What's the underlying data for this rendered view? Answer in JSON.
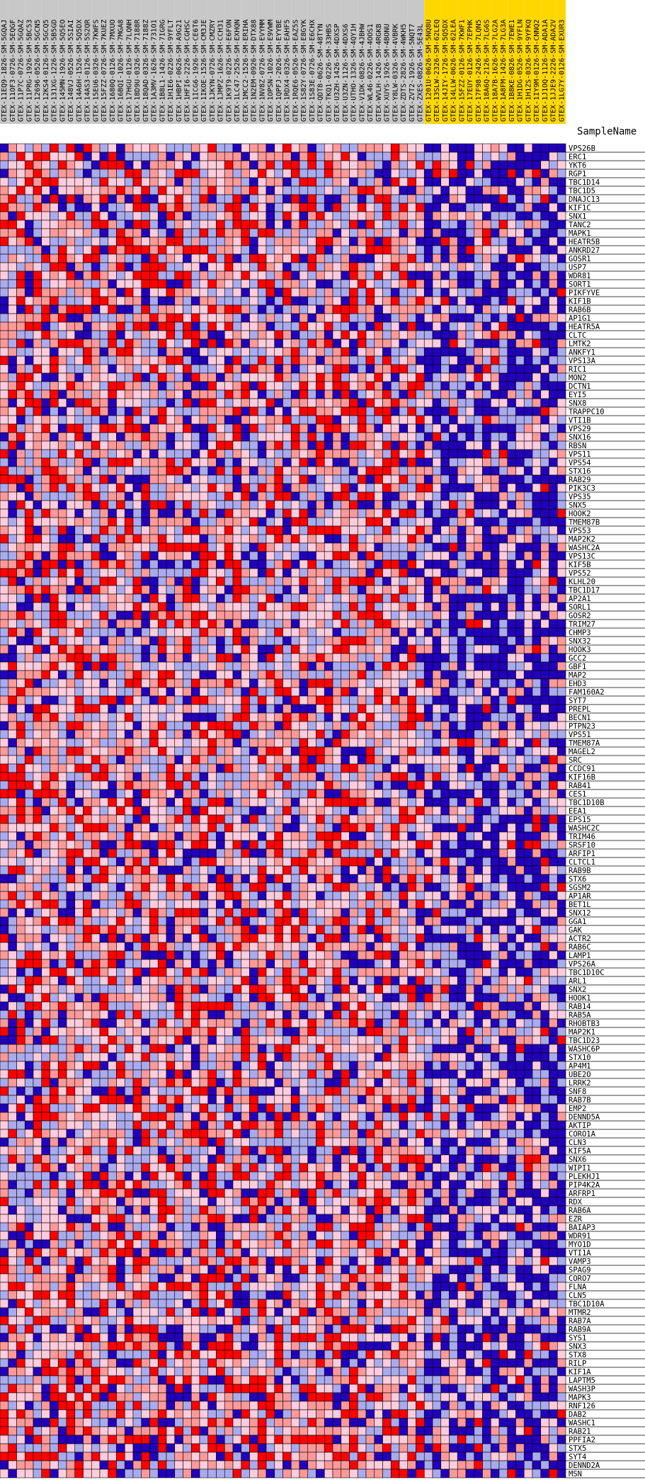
{
  "chart_data": {
    "type": "heatmap",
    "row_header_label": "SampleName",
    "colors": {
      "group_a_header": "#c8c8c8",
      "group_b_header": "#ffd700",
      "high": "#ff0000",
      "mid_high": "#ff9999",
      "mid": "#ffccdd",
      "mid_low": "#aaaaee",
      "low": "#2200bb",
      "grid": "#000000"
    },
    "columns": [
      {
        "name": "GTEX-11EQ9-1826-SM-5GQAJ",
        "group": "a"
      },
      {
        "name": "GTEX-11OF3-0726-SM-5EQGF",
        "group": "a"
      },
      {
        "name": "GTEX-11P7C-0726-SM-5GQAZ",
        "group": "a"
      },
      {
        "name": "GTEX-11PRG-1926-SM-5BC53",
        "group": "a"
      },
      {
        "name": "GTEX-12696-0526-SM-5GCN5",
        "group": "a"
      },
      {
        "name": "GTEX-12KS4-0126-SM-5GCQ5",
        "group": "a"
      },
      {
        "name": "GTEX-131XG-1226-SM-5B5GD",
        "group": "a"
      },
      {
        "name": "GTEX-145MN-1926-SM-5Q5EO",
        "group": "a"
      },
      {
        "name": "GTEX-148VJ-0526-SM-5SIAI",
        "group": "a"
      },
      {
        "name": "GTEX-14A6H-1526-SM-5Q5DX",
        "group": "a"
      },
      {
        "name": "GTEX-14AS3-0126-SM-5S2QR",
        "group": "a"
      },
      {
        "name": "GTEX-15EU6-0326-SM-7KWFS",
        "group": "a"
      },
      {
        "name": "GTEX-15FZZ-0726-SM-7KUEZ",
        "group": "a"
      },
      {
        "name": "GTEX-1680Q-0126-SM-7MXUO",
        "group": "a"
      },
      {
        "name": "GTEX-16BQI-1026-SM-7MGA8",
        "group": "a"
      },
      {
        "name": "GTEX-17HGU-0126-SM-7LQNH",
        "group": "a"
      },
      {
        "name": "GTEX-18D9U-0326-SM-7188R",
        "group": "a"
      },
      {
        "name": "GTEX-18QAD-0326-SM-7188Z",
        "group": "a"
      },
      {
        "name": "GTEX-1A3MV-1626-SM-731O1",
        "group": "a"
      },
      {
        "name": "GTEX-1B8L1-1426-SM-7IGRG",
        "group": "a"
      },
      {
        "name": "GTEX-1H1E6-0226-SM-9YFLT",
        "group": "a"
      },
      {
        "name": "GTEX-1HBPI-0626-SM-A9G21",
        "group": "a"
      },
      {
        "name": "GTEX-1HFI6-2226-SM-CGHSC",
        "group": "a"
      },
      {
        "name": "GTEX-1ICG6-1926-SM-CE6T6",
        "group": "a"
      },
      {
        "name": "GTEX-1IKOE-1526-SM-CM3JE",
        "group": "a"
      },
      {
        "name": "GTEX-1JKYN-0726-SM-CMZRY",
        "group": "a"
      },
      {
        "name": "GTEX-1JMPZ-1626-SM-CCH31",
        "group": "a"
      },
      {
        "name": "GTEX-1K9T9-0226-SM-E6FON",
        "group": "a"
      },
      {
        "name": "GTEX-1LC47-2526-SM-EXHQN",
        "group": "a"
      },
      {
        "name": "GTEX-1MCC2-1526-SM-ERIHA",
        "group": "a"
      },
      {
        "name": "GTEX-1N2EM-0926-SM-DTX88",
        "group": "a"
      },
      {
        "name": "GTEX-1NV8Z-0726-SM-EVYMM",
        "group": "a"
      },
      {
        "name": "GTEX-1OPSN-1026-SM-E9VWM",
        "group": "a"
      },
      {
        "name": "GTEX-1QPFJ-2026-SM-EYYBE",
        "group": "a"
      },
      {
        "name": "GTEX-1RDX4-0326-SM-EAHF5",
        "group": "a"
      },
      {
        "name": "GTEX-1RQE6-0526-SM-EAZ5S",
        "group": "a"
      },
      {
        "name": "GTEX-1S82Y-0726-SM-E8GYK",
        "group": "a"
      },
      {
        "name": "GTEX-1S83E-0726-SM-E6CHX",
        "group": "a"
      },
      {
        "name": "GTEX-QDT8-0626-SM-48TYN",
        "group": "a"
      },
      {
        "name": "GTEX-TKQ1-0226-SM-33HBS",
        "group": "a"
      },
      {
        "name": "GTEX-U3ZH-1426-SM-4DXSP",
        "group": "a"
      },
      {
        "name": "GTEX-U3ZN-1126-SM-4DXS6",
        "group": "a"
      },
      {
        "name": "GTEX-UTHO-1326-SM-4QY1H",
        "group": "a"
      },
      {
        "name": "GTEX-V1DK-0826-SM-4JBHW",
        "group": "a"
      },
      {
        "name": "GTEX-WL46-0226-SM-4OOS1",
        "group": "a"
      },
      {
        "name": "GTEX-WVLH-1426-SM-4RGKB",
        "group": "a"
      },
      {
        "name": "GTEX-XUYS-1926-SM-4BONU",
        "group": "a"
      },
      {
        "name": "GTEX-Y8LW-0326-SM-4VBRK",
        "group": "a"
      },
      {
        "name": "GTEX-ZDTS-2826-SM-4WKH5",
        "group": "a"
      },
      {
        "name": "GTEX-ZVT2-1926-SM-5NQT7",
        "group": "a"
      },
      {
        "name": "GTEX-ZXES-0826-SM-5E43L",
        "group": "a"
      },
      {
        "name": "GTEX-1201U-0626-SM-5NQ8U",
        "group": "b"
      },
      {
        "name": "GTEX-13SLW-2326-SM-62LEQ",
        "group": "b"
      },
      {
        "name": "GTEX-14JIY-1726-SM-5Q5DX",
        "group": "b"
      },
      {
        "name": "GTEX-14LLW-0626-SM-62LEA",
        "group": "b"
      },
      {
        "name": "GTEX-15FZZ-0126-SM-7KWF1",
        "group": "b"
      },
      {
        "name": "GTEX-17EUY-0126-SM-7EPHK",
        "group": "b"
      },
      {
        "name": "GTEX-17F98-2426-SM-7LQN5",
        "group": "b"
      },
      {
        "name": "GTEX-18A6Q-2126-SM-7LG6S",
        "group": "b"
      },
      {
        "name": "GTEX-18A7B-1626-SM-7LG2A",
        "group": "b"
      },
      {
        "name": "GTEX-1A8FM-1426-SM-7LG3A",
        "group": "b"
      },
      {
        "name": "GTEX-1B8KE-0826-SM-7EWE1",
        "group": "b"
      },
      {
        "name": "GTEX-1H1DG-0526-SM-9YFLN",
        "group": "b"
      },
      {
        "name": "GTEX-1H1ZS-0326-SM-9YFKQ",
        "group": "b"
      },
      {
        "name": "GTEX-1IY9M-0126-SM-CNNQ2",
        "group": "b"
      },
      {
        "name": "GTEX-1J1OQ-1126-SM-ADA1A",
        "group": "b"
      },
      {
        "name": "GTEX-1JJE9-2226-SM-ADA2V",
        "group": "b"
      },
      {
        "name": "GTEX-1LG7Y-0126-SM-EXUR3",
        "group": "b"
      }
    ],
    "rows": [
      "VPS26B",
      "ERC1",
      "YKT6",
      "RGP1",
      "TBC1D14",
      "TBC1D5",
      "DNAJC13",
      "KIF1C",
      "SNX1",
      "TANC2",
      "MAPK1",
      "HEATR5B",
      "ANKRD27",
      "GOSR1",
      "USP7",
      "WDR81",
      "SORT1",
      "PIKFYVE",
      "KIF1B",
      "RAB6B",
      "AP1G1",
      "HEATR5A",
      "CLTC",
      "LMTK2",
      "ANKFY1",
      "VPS13A",
      "RIC1",
      "MON2",
      "DCTN1",
      "EYI5",
      "SNX8",
      "TRAPPC10",
      "VTI1B",
      "VPS29",
      "SNX16",
      "RBSN",
      "VPS11",
      "VPS54",
      "STX16",
      "RAB29",
      "PIK3C3",
      "VPS35",
      "SNX5",
      "HOOK2",
      "TMEM87B",
      "VPS53",
      "MAP2K2",
      "WASHC2A",
      "VPS13C",
      "KIF5B",
      "VPS52",
      "KLHL20",
      "TBC1D17",
      "AP2A1",
      "SORL1",
      "GOSR2",
      "TRIM27",
      "CHMP3",
      "SNX32",
      "HOOK3",
      "GCC2",
      "GBF1",
      "MAP2",
      "EHD3",
      "FAM160A2",
      "SYT7",
      "PREPL",
      "BECN1",
      "PTPN23",
      "VPS51",
      "TMEM87A",
      "MAGEL2",
      "SRC",
      "CCDC91",
      "KIF16B",
      "RAB41",
      "CES1",
      "TBC1D10B",
      "EEA1",
      "EPS15",
      "WASHC2C",
      "TRIM46",
      "SRSF10",
      "ARFIP1",
      "CLTCL1",
      "RAB9B",
      "STX6",
      "SGSM2",
      "AP1AR",
      "BET1L",
      "SNX12",
      "GGA1",
      "GAK",
      "ACTR2",
      "RAB6C",
      "LAMP1",
      "VPS26A",
      "TBC1D10C",
      "ARL1",
      "SNX2",
      "HOOK1",
      "RAB14",
      "RAB5A",
      "RHOBTB3",
      "MAP2K1",
      "TBC1D23",
      "WASHC6P",
      "STX10",
      "AP4M1",
      "UBE2O",
      "LRRK2",
      "SNF8",
      "RAB7B",
      "EMP2",
      "DENND5A",
      "AKTIP",
      "CORO1A",
      "CLN3",
      "KIF5A",
      "SNX6",
      "WIPI1",
      "PLEKHJ1",
      "PIP4K2A",
      "ARFRP1",
      "RDX",
      "RAB6A",
      "EZR",
      "BAIAP3",
      "WDR91",
      "MYO1D",
      "VTI1A",
      "VAMP3",
      "SPAG9",
      "CORO7",
      "FLNA",
      "CLN5",
      "TBC1D10A",
      "MTMR2",
      "RAB7A",
      "RAB9A",
      "SYS1",
      "SNX3",
      "STX8",
      "RILP",
      "KIF1A",
      "LAPTM5",
      "WASH3P",
      "MAPK3",
      "RNF126",
      "DAB2",
      "WASHC1",
      "RAB21",
      "PPFIA2",
      "STX5",
      "SYT4",
      "DENND2A",
      "MSN"
    ],
    "values_note": "",
    "values": []
  }
}
